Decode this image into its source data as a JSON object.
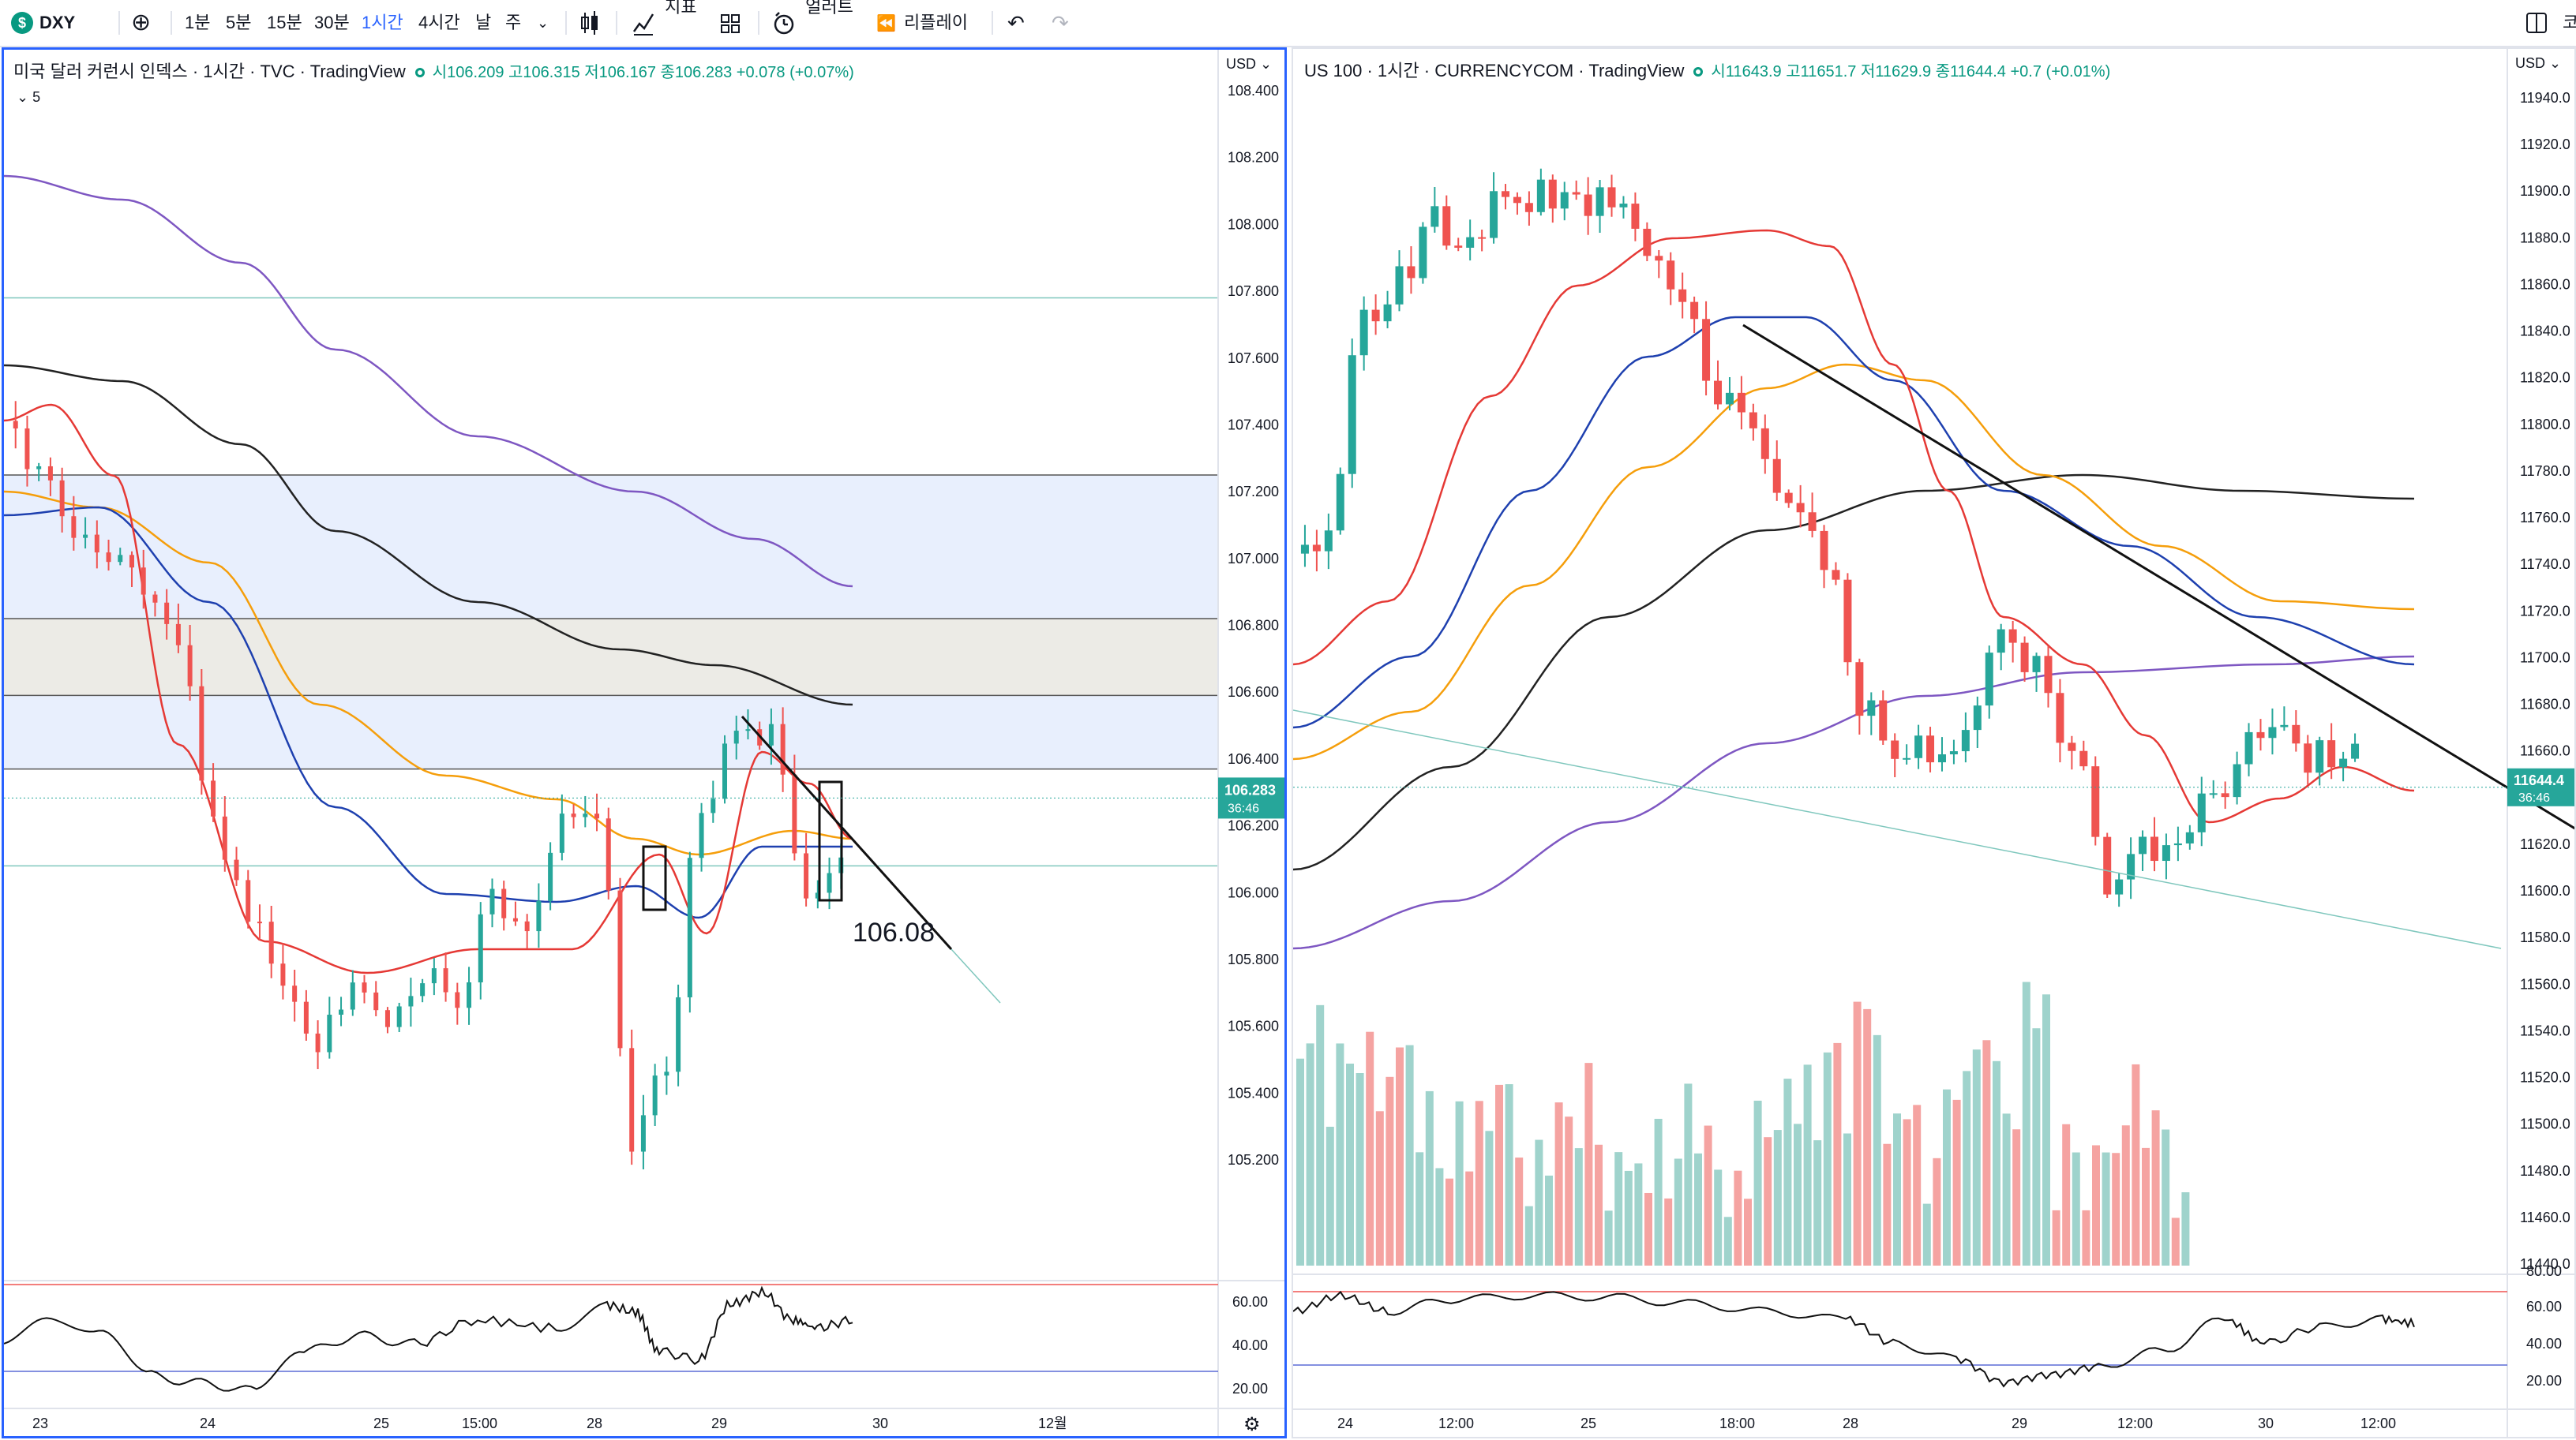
{
  "toolbar": {
    "symbol": "DXY",
    "symbol_badge": "$",
    "intervals": [
      "1분",
      "5분",
      "15분",
      "30분",
      "1시간",
      "4시간",
      "날",
      "주"
    ],
    "active_interval": "1시간",
    "indicators_label": "지표",
    "alert_label": "얼러트",
    "replay_label": "리플레이",
    "right_text": "코"
  },
  "chart_data": [
    {
      "type": "candlestick",
      "title": "미국 달러 커런시 인덱스 · 1시간 · TVC · TradingView",
      "ohlc_text": "시106.209 고106.315 저106.167 종106.283 +0.078 (+0.07%)",
      "indicator_badge": "5",
      "currency": "USD",
      "price_ticks": [
        "108.400",
        "108.200",
        "108.000",
        "107.800",
        "107.600",
        "107.400",
        "107.200",
        "107.000",
        "106.800",
        "106.600",
        "106.400",
        "106.200",
        "106.000",
        "105.800",
        "105.600",
        "105.400",
        "105.200"
      ],
      "last_price": "106.283",
      "countdown": "36:46",
      "annotation": "106.08",
      "time_ticks": [
        "23",
        "24",
        "25",
        "15:00",
        "28",
        "29",
        "30",
        "12월"
      ],
      "osc_ticks": [
        "60.00",
        "40.00",
        "20.00"
      ],
      "colors": {
        "up": "#26a69a",
        "down": "#ef5350",
        "ma_fast": "#e53935",
        "ma_mid": "#1e40af",
        "ma_orange": "#f59e0b",
        "ma_black": "#222222",
        "ma_purple": "#7e57c2",
        "zone_blue": "#e8effd",
        "zone_gray": "#ecebe6",
        "trend_green": "#7fc7bd"
      }
    },
    {
      "type": "candlestick",
      "title": "US 100 · 1시간 · CURRENCYCOM · TradingView",
      "ohlc_text": "시11643.9 고11651.7 저11629.9 종11644.4 +0.7 (+0.01%)",
      "currency": "USD",
      "price_ticks": [
        "11940.0",
        "11920.0",
        "11900.0",
        "11880.0",
        "11860.0",
        "11840.0",
        "11820.0",
        "11800.0",
        "11780.0",
        "11760.0",
        "11740.0",
        "11720.0",
        "11700.0",
        "11680.0",
        "11660.0",
        "11640.0",
        "11620.0",
        "11600.0",
        "11580.0",
        "11560.0",
        "11540.0",
        "11520.0",
        "11500.0",
        "11480.0",
        "11460.0",
        "11440.0"
      ],
      "last_price": "11644.4",
      "countdown": "36:46",
      "time_ticks": [
        "24",
        "12:00",
        "25",
        "18:00",
        "28",
        "29",
        "12:00",
        "30",
        "12:00"
      ],
      "osc_ticks": [
        "80.00",
        "60.00",
        "40.00",
        "20.00"
      ],
      "colors": {
        "up": "#26a69a",
        "down": "#ef5350",
        "vol_up": "#9fd3cc",
        "vol_down": "#f5a3a1"
      }
    }
  ]
}
